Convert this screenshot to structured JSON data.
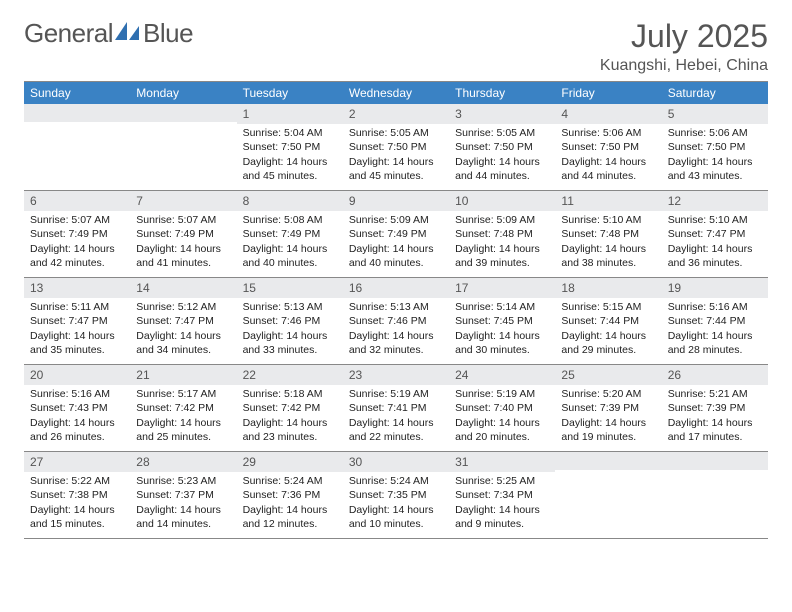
{
  "brand": {
    "word1": "General",
    "word2": "Blue"
  },
  "title": "July 2025",
  "location": "Kuangshi, Hebei, China",
  "colors": {
    "header_bar": "#3a82c4",
    "daynum_bg": "#e9eaec",
    "text_muted": "#555555",
    "rule": "#888888",
    "logo_blue": "#2f6fb0"
  },
  "day_names": [
    "Sunday",
    "Monday",
    "Tuesday",
    "Wednesday",
    "Thursday",
    "Friday",
    "Saturday"
  ],
  "calendar": {
    "first_weekday_index": 2,
    "days_in_month": 31
  },
  "days": {
    "1": {
      "sunrise": "5:04 AM",
      "sunset": "7:50 PM",
      "daylight": "14 hours and 45 minutes."
    },
    "2": {
      "sunrise": "5:05 AM",
      "sunset": "7:50 PM",
      "daylight": "14 hours and 45 minutes."
    },
    "3": {
      "sunrise": "5:05 AM",
      "sunset": "7:50 PM",
      "daylight": "14 hours and 44 minutes."
    },
    "4": {
      "sunrise": "5:06 AM",
      "sunset": "7:50 PM",
      "daylight": "14 hours and 44 minutes."
    },
    "5": {
      "sunrise": "5:06 AM",
      "sunset": "7:50 PM",
      "daylight": "14 hours and 43 minutes."
    },
    "6": {
      "sunrise": "5:07 AM",
      "sunset": "7:49 PM",
      "daylight": "14 hours and 42 minutes."
    },
    "7": {
      "sunrise": "5:07 AM",
      "sunset": "7:49 PM",
      "daylight": "14 hours and 41 minutes."
    },
    "8": {
      "sunrise": "5:08 AM",
      "sunset": "7:49 PM",
      "daylight": "14 hours and 40 minutes."
    },
    "9": {
      "sunrise": "5:09 AM",
      "sunset": "7:49 PM",
      "daylight": "14 hours and 40 minutes."
    },
    "10": {
      "sunrise": "5:09 AM",
      "sunset": "7:48 PM",
      "daylight": "14 hours and 39 minutes."
    },
    "11": {
      "sunrise": "5:10 AM",
      "sunset": "7:48 PM",
      "daylight": "14 hours and 38 minutes."
    },
    "12": {
      "sunrise": "5:10 AM",
      "sunset": "7:47 PM",
      "daylight": "14 hours and 36 minutes."
    },
    "13": {
      "sunrise": "5:11 AM",
      "sunset": "7:47 PM",
      "daylight": "14 hours and 35 minutes."
    },
    "14": {
      "sunrise": "5:12 AM",
      "sunset": "7:47 PM",
      "daylight": "14 hours and 34 minutes."
    },
    "15": {
      "sunrise": "5:13 AM",
      "sunset": "7:46 PM",
      "daylight": "14 hours and 33 minutes."
    },
    "16": {
      "sunrise": "5:13 AM",
      "sunset": "7:46 PM",
      "daylight": "14 hours and 32 minutes."
    },
    "17": {
      "sunrise": "5:14 AM",
      "sunset": "7:45 PM",
      "daylight": "14 hours and 30 minutes."
    },
    "18": {
      "sunrise": "5:15 AM",
      "sunset": "7:44 PM",
      "daylight": "14 hours and 29 minutes."
    },
    "19": {
      "sunrise": "5:16 AM",
      "sunset": "7:44 PM",
      "daylight": "14 hours and 28 minutes."
    },
    "20": {
      "sunrise": "5:16 AM",
      "sunset": "7:43 PM",
      "daylight": "14 hours and 26 minutes."
    },
    "21": {
      "sunrise": "5:17 AM",
      "sunset": "7:42 PM",
      "daylight": "14 hours and 25 minutes."
    },
    "22": {
      "sunrise": "5:18 AM",
      "sunset": "7:42 PM",
      "daylight": "14 hours and 23 minutes."
    },
    "23": {
      "sunrise": "5:19 AM",
      "sunset": "7:41 PM",
      "daylight": "14 hours and 22 minutes."
    },
    "24": {
      "sunrise": "5:19 AM",
      "sunset": "7:40 PM",
      "daylight": "14 hours and 20 minutes."
    },
    "25": {
      "sunrise": "5:20 AM",
      "sunset": "7:39 PM",
      "daylight": "14 hours and 19 minutes."
    },
    "26": {
      "sunrise": "5:21 AM",
      "sunset": "7:39 PM",
      "daylight": "14 hours and 17 minutes."
    },
    "27": {
      "sunrise": "5:22 AM",
      "sunset": "7:38 PM",
      "daylight": "14 hours and 15 minutes."
    },
    "28": {
      "sunrise": "5:23 AM",
      "sunset": "7:37 PM",
      "daylight": "14 hours and 14 minutes."
    },
    "29": {
      "sunrise": "5:24 AM",
      "sunset": "7:36 PM",
      "daylight": "14 hours and 12 minutes."
    },
    "30": {
      "sunrise": "5:24 AM",
      "sunset": "7:35 PM",
      "daylight": "14 hours and 10 minutes."
    },
    "31": {
      "sunrise": "5:25 AM",
      "sunset": "7:34 PM",
      "daylight": "14 hours and 9 minutes."
    }
  },
  "labels": {
    "sunrise_prefix": "Sunrise: ",
    "sunset_prefix": "Sunset: ",
    "daylight_prefix": "Daylight: "
  }
}
